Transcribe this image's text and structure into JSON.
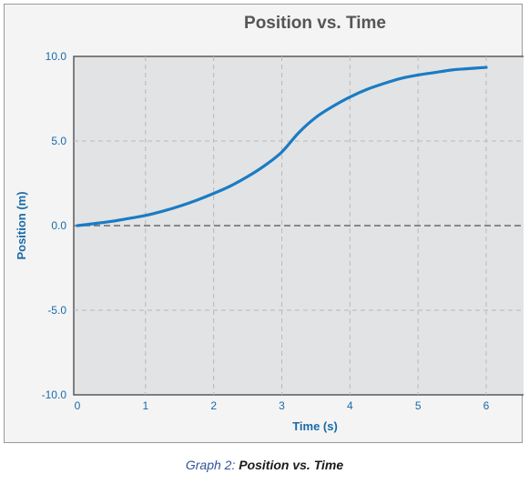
{
  "chart_data": {
    "type": "line",
    "title": "Position vs. Time",
    "xlabel": "Time (s)",
    "ylabel": "Position (m)",
    "xlim": [
      0,
      6
    ],
    "ylim": [
      -10,
      10
    ],
    "x_ticks": [
      "0",
      "1",
      "2",
      "3",
      "4",
      "5",
      "6"
    ],
    "y_ticks": [
      "10.0",
      "5.0",
      "0.0",
      "-5.0",
      "-10.0"
    ],
    "grid": true,
    "series": [
      {
        "x": [
          0,
          0.25,
          0.5,
          0.75,
          1,
          1.25,
          1.5,
          1.75,
          2,
          2.25,
          2.5,
          2.75,
          3,
          3.25,
          3.5,
          3.75,
          4,
          4.25,
          4.5,
          4.75,
          5,
          5.25,
          5.5,
          5.75,
          6
        ],
        "y": [
          0,
          0.12,
          0.25,
          0.42,
          0.6,
          0.85,
          1.15,
          1.5,
          1.9,
          2.35,
          2.9,
          3.55,
          4.35,
          5.5,
          6.4,
          7.05,
          7.6,
          8.05,
          8.4,
          8.7,
          8.9,
          9.05,
          9.2,
          9.28,
          9.35
        ],
        "color": "#1a7bc4"
      }
    ]
  },
  "caption": {
    "label": "Graph 2:",
    "text": "Position vs. Time"
  }
}
